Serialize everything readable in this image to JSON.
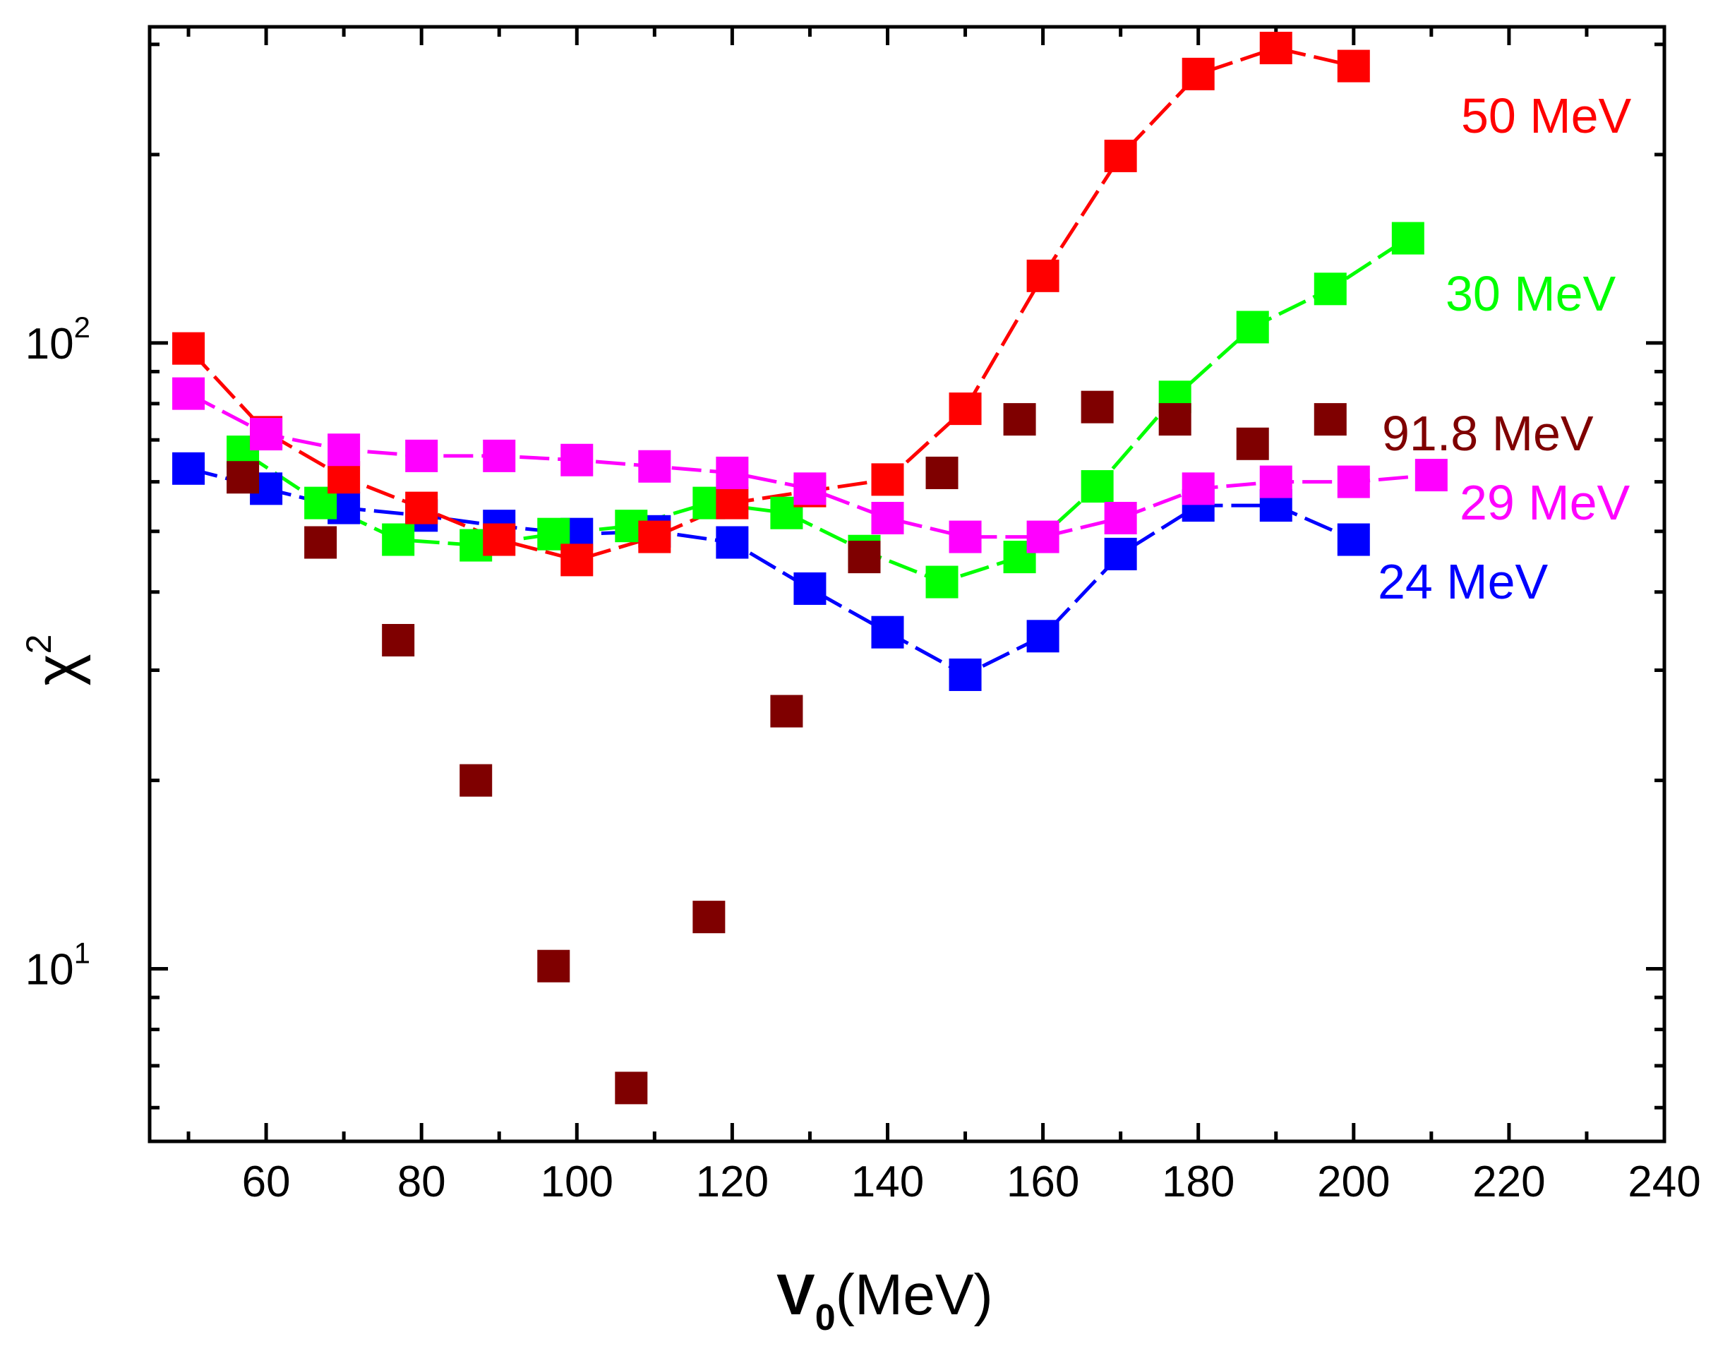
{
  "chart_data": {
    "type": "scatter",
    "title": "",
    "xlabel": "V0(MeV)",
    "xlabel_main": "V",
    "xlabel_sub": "0",
    "xlabel_rest": "(MeV)",
    "ylabel": "χ2",
    "ylabel_main": "χ",
    "ylabel_sup": "2",
    "yscale": "log",
    "xlim": [
      45,
      240
    ],
    "ylim": [
      5.3,
      320
    ],
    "grid": false,
    "x_ticks": [
      60,
      80,
      100,
      120,
      140,
      160,
      180,
      200,
      220,
      240
    ],
    "x_tick_labels": [
      "60",
      "80",
      "100",
      "120",
      "140",
      "160",
      "180",
      "200",
      "220",
      "240"
    ],
    "y_tick_labels": [
      {
        "value": 100,
        "base": "10",
        "exp": "2"
      },
      {
        "value": 10,
        "base": "10",
        "exp": "1"
      }
    ],
    "series": [
      {
        "name": "24 MeV",
        "color": "#0000ff",
        "line": "dashed",
        "x": [
          50,
          60,
          70,
          80,
          90,
          100,
          110,
          120,
          130,
          140,
          150,
          160,
          170,
          180,
          190,
          200
        ],
        "y": [
          63,
          58.5,
          54.5,
          53,
          51,
          49.5,
          50,
          48,
          40.5,
          34.5,
          29.5,
          34,
          46,
          55,
          55,
          48.5
        ]
      },
      {
        "name": "30 MeV",
        "color": "#00ff00",
        "line": "dashed",
        "x": [
          57,
          67,
          77,
          87,
          97,
          107,
          117,
          127,
          137,
          147,
          157,
          167,
          177,
          187,
          197,
          207
        ],
        "y": [
          67,
          55.5,
          48.5,
          47.5,
          49.5,
          51,
          55.5,
          53.5,
          46.5,
          41.5,
          45.5,
          59,
          82,
          106,
          122,
          147
        ]
      },
      {
        "name": "50 MeV",
        "color": "#ff0000",
        "line": "dashed",
        "x": [
          50,
          60,
          70,
          80,
          90,
          100,
          110,
          120,
          130,
          140,
          150,
          160,
          170,
          180,
          190,
          200
        ],
        "y": [
          98,
          72,
          61,
          54.5,
          48.5,
          45,
          49,
          55.5,
          58,
          60.5,
          78.5,
          128,
          199,
          269,
          296,
          277
        ]
      },
      {
        "name": "29 MeV",
        "color": "#ff00ff",
        "line": "dashed",
        "x": [
          50,
          60,
          70,
          80,
          90,
          100,
          110,
          120,
          130,
          140,
          150,
          160,
          170,
          180,
          190,
          200,
          210
        ],
        "y": [
          83,
          71.5,
          67.5,
          66,
          66,
          65,
          63.5,
          62,
          58.5,
          52.5,
          49,
          49,
          52.5,
          58.5,
          60,
          60,
          61.5
        ]
      },
      {
        "name": "91.8 MeV",
        "color": "#7f0000",
        "line": "none",
        "x": [
          57,
          67,
          77,
          87,
          97,
          107,
          117,
          127,
          137,
          147,
          157,
          167,
          177,
          187,
          197
        ],
        "y": [
          61,
          48,
          33.5,
          20,
          10.1,
          6.45,
          12.1,
          25.8,
          45.5,
          62,
          75.5,
          79,
          75.5,
          69,
          75.5
        ]
      }
    ],
    "annotations": [
      {
        "text": "50 MeV",
        "color": "#ff0000",
        "at_series": "50 MeV"
      },
      {
        "text": "30 MeV",
        "color": "#00ff00",
        "at_series": "30 MeV"
      },
      {
        "text": "91.8 MeV",
        "color": "#7f0000",
        "at_series": "91.8 MeV"
      },
      {
        "text": "29 MeV",
        "color": "#ff00ff",
        "at_series": "29 MeV"
      },
      {
        "text": "24 MeV",
        "color": "#0000ff",
        "at_series": "24 MeV"
      }
    ]
  }
}
